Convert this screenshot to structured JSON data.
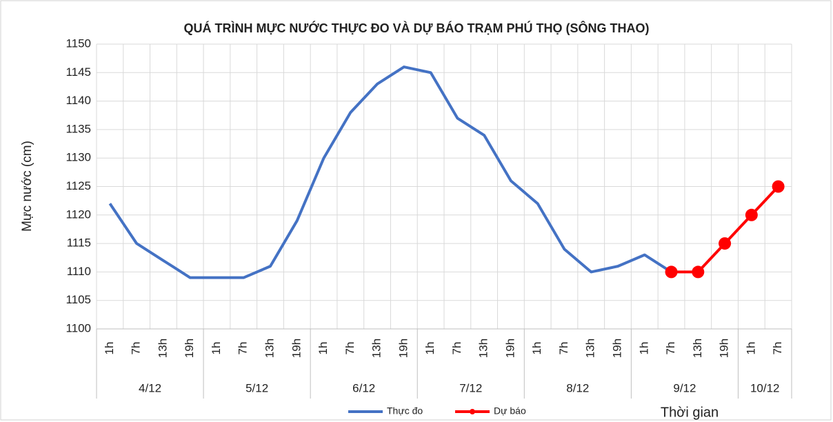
{
  "chart_data": {
    "type": "line",
    "title": "QUÁ TRÌNH MỰC NƯỚC THỰC ĐO VÀ DỰ BÁO TRẠM PHÚ THỌ (SÔNG THAO)",
    "y_label": "Mực nước (cm)",
    "x_label": "Thời gian",
    "categories": [
      "1h",
      "7h",
      "13h",
      "19h",
      "1h",
      "7h",
      "13h",
      "19h",
      "1h",
      "7h",
      "13h",
      "19h",
      "1h",
      "7h",
      "13h",
      "19h",
      "1h",
      "7h",
      "13h",
      "19h",
      "1h",
      "7h",
      "13h",
      "19h",
      "1h",
      "7h"
    ],
    "groups": [
      {
        "label": "4/12",
        "span": 4
      },
      {
        "label": "5/12",
        "span": 4
      },
      {
        "label": "6/12",
        "span": 4
      },
      {
        "label": "7/12",
        "span": 4
      },
      {
        "label": "8/12",
        "span": 4
      },
      {
        "label": "9/12",
        "span": 4
      },
      {
        "label": "10/12",
        "span": 2
      }
    ],
    "series": [
      {
        "name": "Thực đo",
        "color": "#4472c4",
        "marker": false,
        "values": [
          1122,
          1115,
          1112,
          1109,
          1109,
          1109,
          1111,
          1119,
          1130,
          1138,
          1143,
          1146,
          1145,
          1137,
          1134,
          1126,
          1122,
          1114,
          1110,
          1111,
          1113,
          1110,
          null,
          null,
          null,
          null
        ]
      },
      {
        "name": "Dự báo",
        "color": "#ff0000",
        "marker": true,
        "values": [
          null,
          null,
          null,
          null,
          null,
          null,
          null,
          null,
          null,
          null,
          null,
          null,
          null,
          null,
          null,
          null,
          null,
          null,
          null,
          null,
          null,
          1110,
          1110,
          1115,
          1120,
          1125
        ]
      }
    ],
    "ylim": [
      1100,
      1150
    ],
    "yticks": [
      1100,
      1105,
      1110,
      1115,
      1120,
      1125,
      1130,
      1135,
      1140,
      1145,
      1150
    ],
    "grid": true
  }
}
